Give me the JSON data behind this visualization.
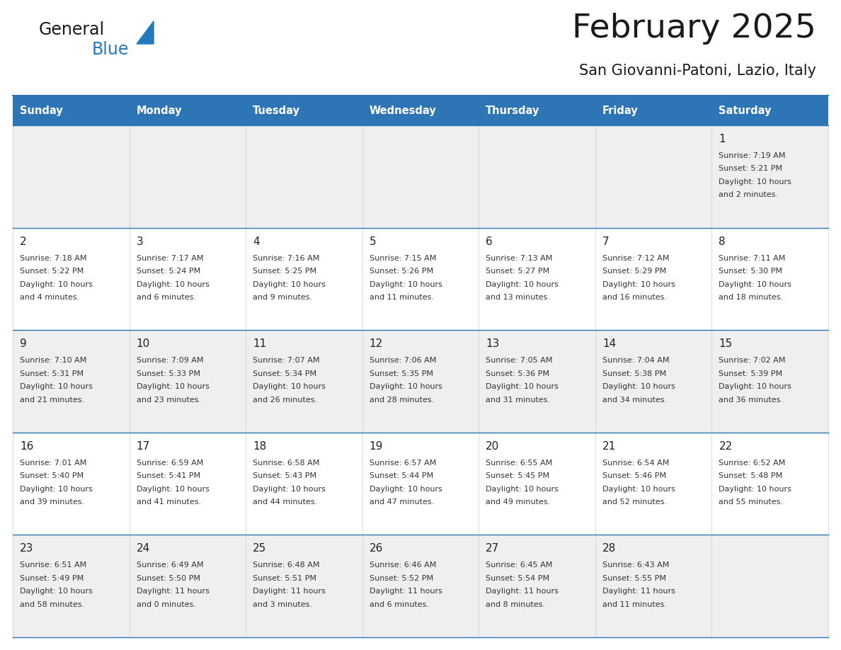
{
  "title": "February 2025",
  "subtitle": "San Giovanni-Patoni, Lazio, Italy",
  "header_bg": "#2E75B6",
  "header_text_color": "#FFFFFF",
  "days_of_week": [
    "Sunday",
    "Monday",
    "Tuesday",
    "Wednesday",
    "Thursday",
    "Friday",
    "Saturday"
  ],
  "cell_bg_light": "#EFEFEF",
  "cell_bg_white": "#FFFFFF",
  "border_color": "#2E75B6",
  "day_number_color": "#222222",
  "info_text_color": "#333333",
  "calendar": [
    [
      null,
      null,
      null,
      null,
      null,
      null,
      {
        "day": 1,
        "rise": "7:19 AM",
        "set": "5:21 PM",
        "daylight": "10 hours\nand 2 minutes."
      }
    ],
    [
      {
        "day": 2,
        "rise": "7:18 AM",
        "set": "5:22 PM",
        "daylight": "10 hours\nand 4 minutes."
      },
      {
        "day": 3,
        "rise": "7:17 AM",
        "set": "5:24 PM",
        "daylight": "10 hours\nand 6 minutes."
      },
      {
        "day": 4,
        "rise": "7:16 AM",
        "set": "5:25 PM",
        "daylight": "10 hours\nand 9 minutes."
      },
      {
        "day": 5,
        "rise": "7:15 AM",
        "set": "5:26 PM",
        "daylight": "10 hours\nand 11 minutes."
      },
      {
        "day": 6,
        "rise": "7:13 AM",
        "set": "5:27 PM",
        "daylight": "10 hours\nand 13 minutes."
      },
      {
        "day": 7,
        "rise": "7:12 AM",
        "set": "5:29 PM",
        "daylight": "10 hours\nand 16 minutes."
      },
      {
        "day": 8,
        "rise": "7:11 AM",
        "set": "5:30 PM",
        "daylight": "10 hours\nand 18 minutes."
      }
    ],
    [
      {
        "day": 9,
        "rise": "7:10 AM",
        "set": "5:31 PM",
        "daylight": "10 hours\nand 21 minutes."
      },
      {
        "day": 10,
        "rise": "7:09 AM",
        "set": "5:33 PM",
        "daylight": "10 hours\nand 23 minutes."
      },
      {
        "day": 11,
        "rise": "7:07 AM",
        "set": "5:34 PM",
        "daylight": "10 hours\nand 26 minutes."
      },
      {
        "day": 12,
        "rise": "7:06 AM",
        "set": "5:35 PM",
        "daylight": "10 hours\nand 28 minutes."
      },
      {
        "day": 13,
        "rise": "7:05 AM",
        "set": "5:36 PM",
        "daylight": "10 hours\nand 31 minutes."
      },
      {
        "day": 14,
        "rise": "7:04 AM",
        "set": "5:38 PM",
        "daylight": "10 hours\nand 34 minutes."
      },
      {
        "day": 15,
        "rise": "7:02 AM",
        "set": "5:39 PM",
        "daylight": "10 hours\nand 36 minutes."
      }
    ],
    [
      {
        "day": 16,
        "rise": "7:01 AM",
        "set": "5:40 PM",
        "daylight": "10 hours\nand 39 minutes."
      },
      {
        "day": 17,
        "rise": "6:59 AM",
        "set": "5:41 PM",
        "daylight": "10 hours\nand 41 minutes."
      },
      {
        "day": 18,
        "rise": "6:58 AM",
        "set": "5:43 PM",
        "daylight": "10 hours\nand 44 minutes."
      },
      {
        "day": 19,
        "rise": "6:57 AM",
        "set": "5:44 PM",
        "daylight": "10 hours\nand 47 minutes."
      },
      {
        "day": 20,
        "rise": "6:55 AM",
        "set": "5:45 PM",
        "daylight": "10 hours\nand 49 minutes."
      },
      {
        "day": 21,
        "rise": "6:54 AM",
        "set": "5:46 PM",
        "daylight": "10 hours\nand 52 minutes."
      },
      {
        "day": 22,
        "rise": "6:52 AM",
        "set": "5:48 PM",
        "daylight": "10 hours\nand 55 minutes."
      }
    ],
    [
      {
        "day": 23,
        "rise": "6:51 AM",
        "set": "5:49 PM",
        "daylight": "10 hours\nand 58 minutes."
      },
      {
        "day": 24,
        "rise": "6:49 AM",
        "set": "5:50 PM",
        "daylight": "11 hours\nand 0 minutes."
      },
      {
        "day": 25,
        "rise": "6:48 AM",
        "set": "5:51 PM",
        "daylight": "11 hours\nand 3 minutes."
      },
      {
        "day": 26,
        "rise": "6:46 AM",
        "set": "5:52 PM",
        "daylight": "11 hours\nand 6 minutes."
      },
      {
        "day": 27,
        "rise": "6:45 AM",
        "set": "5:54 PM",
        "daylight": "11 hours\nand 8 minutes."
      },
      {
        "day": 28,
        "rise": "6:43 AM",
        "set": "5:55 PM",
        "daylight": "11 hours\nand 11 minutes."
      },
      null
    ]
  ],
  "logo_color1": "#1a1a1a",
  "logo_color2": "#2478BE",
  "logo_triangle_color": "#2478BE"
}
